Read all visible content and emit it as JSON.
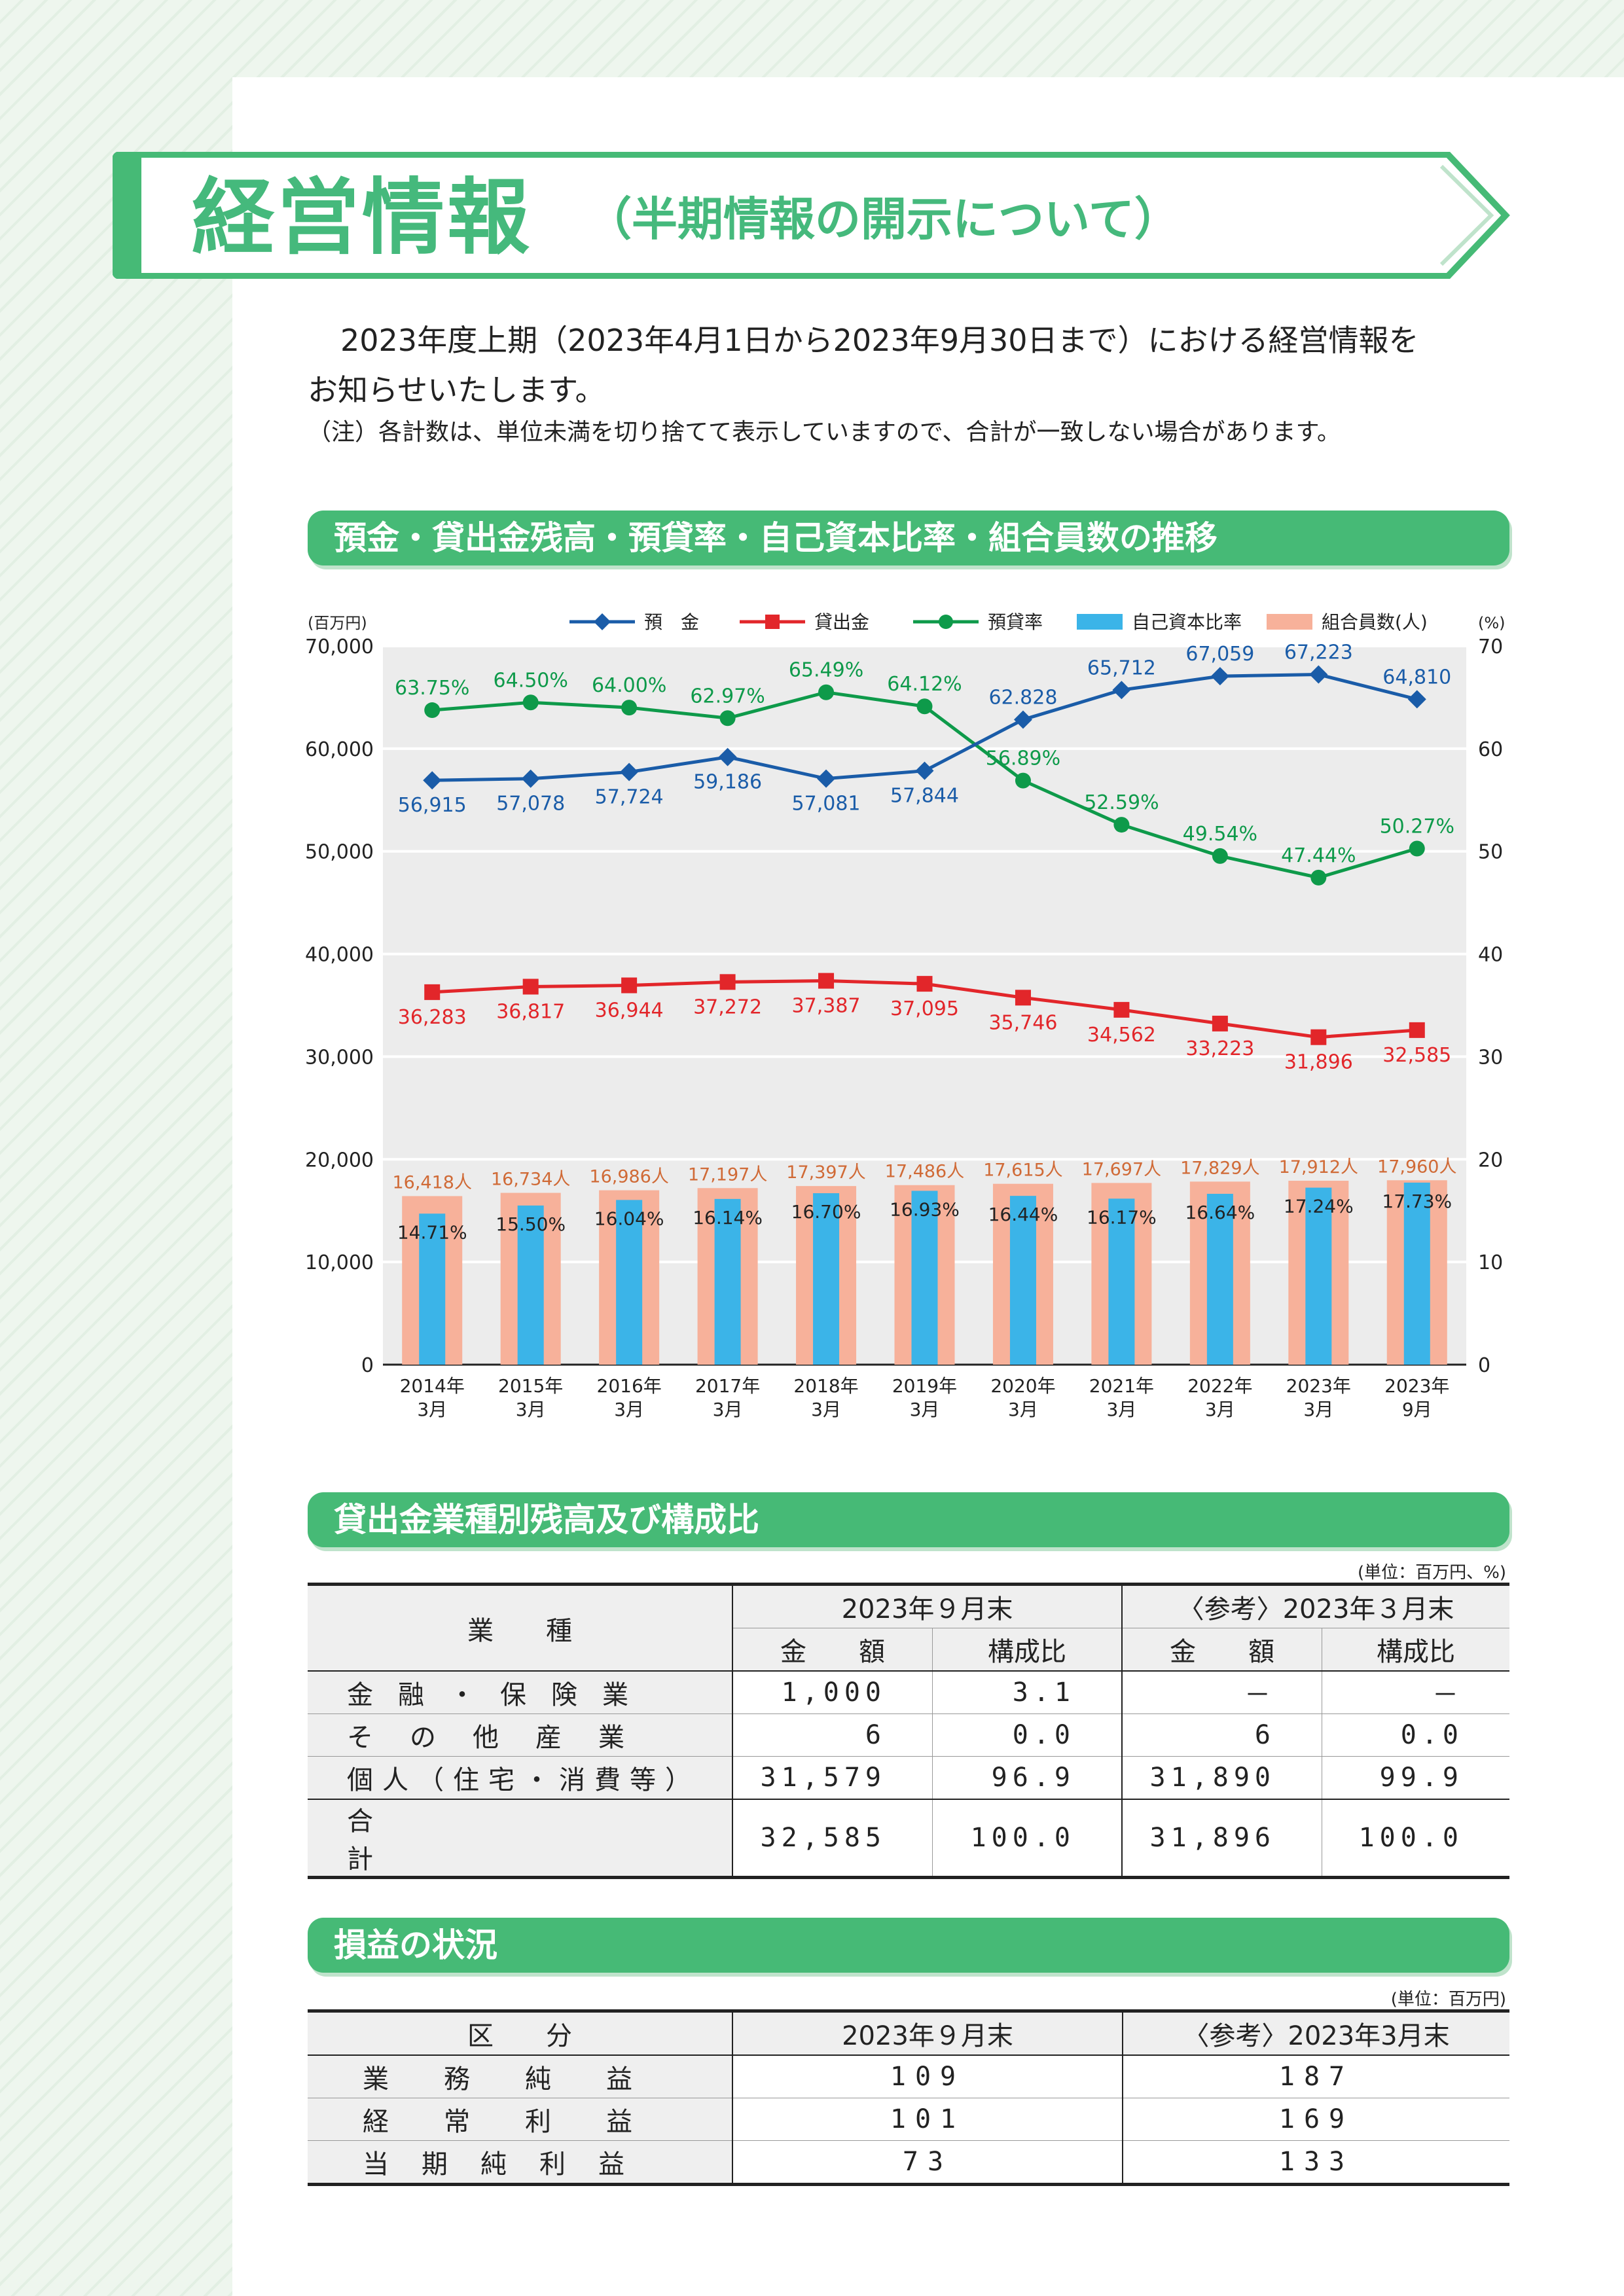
{
  "header": {
    "title": "経営情報",
    "subtitle": "（半期情報の開示について）"
  },
  "intro": {
    "line1": "2023年度上期（2023年4月1日から2023年9月30日まで）における経営情報を",
    "line2": "お知らせいたします。",
    "note": "（注）各計数は、単位未満を切り捨てて表示していますので、合計が一致しない場合があります。"
  },
  "sections": {
    "chart_title": "預金・貸出金残高・預貸率・自己資本比率・組合員数の推移",
    "loans_title": "貸出金業種別残高及び構成比",
    "pl_title": "損益の状況"
  },
  "colors": {
    "green": "#46ba76",
    "deposits": "#1a5ca8",
    "loans": "#e2262a",
    "ratio": "#0e9a4a",
    "capital": "#3bb4e8",
    "members": "#f7b19a",
    "members_label": "#d06a36"
  },
  "chart_data": {
    "type": "bar+line",
    "left_axis_unit": "(百万円)",
    "right_axis_unit": "(%)",
    "left_ylim": [
      0,
      70000
    ],
    "right_ylim": [
      0,
      70
    ],
    "left_ticks": [
      "0",
      "10,000",
      "20,000",
      "30,000",
      "40,000",
      "50,000",
      "60,000",
      "70,000"
    ],
    "right_ticks": [
      "0",
      "10",
      "20",
      "30",
      "40",
      "50",
      "60",
      "70"
    ],
    "grid": true,
    "legend_position": "top",
    "categories": [
      [
        "2014年",
        "3月"
      ],
      [
        "2015年",
        "3月"
      ],
      [
        "2016年",
        "3月"
      ],
      [
        "2017年",
        "3月"
      ],
      [
        "2018年",
        "3月"
      ],
      [
        "2019年",
        "3月"
      ],
      [
        "2020年",
        "3月"
      ],
      [
        "2021年",
        "3月"
      ],
      [
        "2022年",
        "3月"
      ],
      [
        "2023年",
        "3月"
      ],
      [
        "2023年",
        "9月"
      ]
    ],
    "series": [
      {
        "name": "預　金",
        "type": "line",
        "axis": "left",
        "values": [
          56915,
          57078,
          57724,
          59186,
          57081,
          57844,
          62828,
          65712,
          67059,
          67223,
          64810
        ],
        "labels": [
          "56,915",
          "57,078",
          "57,724",
          "59,186",
          "57,081",
          "57,844",
          "62.828",
          "65,712",
          "67,059",
          "67,223",
          "64,810"
        ]
      },
      {
        "name": "貸出金",
        "type": "line",
        "axis": "left",
        "values": [
          36283,
          36817,
          36944,
          37272,
          37387,
          37095,
          35746,
          34562,
          33223,
          31896,
          32585
        ],
        "labels": [
          "36,283",
          "36,817",
          "36,944",
          "37,272",
          "37,387",
          "37,095",
          "35,746",
          "34,562",
          "33,223",
          "31,896",
          "32,585"
        ]
      },
      {
        "name": "預貸率",
        "type": "line",
        "axis": "right",
        "values": [
          63.75,
          64.5,
          64.0,
          62.97,
          65.49,
          64.12,
          56.89,
          52.59,
          49.54,
          47.44,
          50.27
        ],
        "labels": [
          "63.75%",
          "64.50%",
          "64.00%",
          "62.97%",
          "65.49%",
          "64.12%",
          "56.89%",
          "52.59%",
          "49.54%",
          "47.44%",
          "50.27%"
        ]
      },
      {
        "name": "自己資本比率",
        "type": "bar",
        "axis": "right",
        "values": [
          14.71,
          15.5,
          16.04,
          16.14,
          16.7,
          16.93,
          16.44,
          16.17,
          16.64,
          17.24,
          17.73
        ],
        "labels": [
          "14.71%",
          "15.50%",
          "16.04%",
          "16.14%",
          "16.70%",
          "16.93%",
          "16.44%",
          "16.17%",
          "16.64%",
          "17.24%",
          "17.73%"
        ]
      },
      {
        "name": "組合員数(人)",
        "type": "bar",
        "axis": "left",
        "values": [
          16418,
          16734,
          16986,
          17197,
          17397,
          17486,
          17615,
          17697,
          17829,
          17912,
          17960
        ],
        "labels": [
          "16,418人",
          "16,734人",
          "16,986人",
          "17,197人",
          "17,397人",
          "17,486人",
          "17,615人",
          "17,697人",
          "17,829人",
          "17,912人",
          "17,960人"
        ]
      }
    ]
  },
  "loans_table": {
    "unit": "(単位：百万円、%)",
    "col_industry": "業　　種",
    "col_sep": "2023年９月末",
    "col_mar": "〈参考〉2023年３月末",
    "col_amount": "金　　額",
    "col_ratio": "構成比",
    "rows": [
      {
        "label": "金融・保険業",
        "a1": "1,000",
        "r1": "3.1",
        "a2": "－",
        "r2": "－"
      },
      {
        "label": "その他産業",
        "a1": "6",
        "r1": "0.0",
        "a2": "6",
        "r2": "0.0"
      },
      {
        "label": "個人（住宅・消費等）",
        "a1": "31,579",
        "r1": "96.9",
        "a2": "31,890",
        "r2": "99.9"
      },
      {
        "label": "合計",
        "a1": "32,585",
        "r1": "100.0",
        "a2": "31,896",
        "r2": "100.0"
      }
    ]
  },
  "pl_table": {
    "unit": "(単位：百万円)",
    "col_category": "区　　分",
    "col_sep": "2023年９月末",
    "col_mar": "〈参考〉2023年3月末",
    "rows": [
      {
        "label": "業務純益",
        "v1": "109",
        "v2": "187"
      },
      {
        "label": "経常利益",
        "v1": "101",
        "v2": "169"
      },
      {
        "label": "当期純利益",
        "v1": "73",
        "v2": "133"
      }
    ]
  }
}
